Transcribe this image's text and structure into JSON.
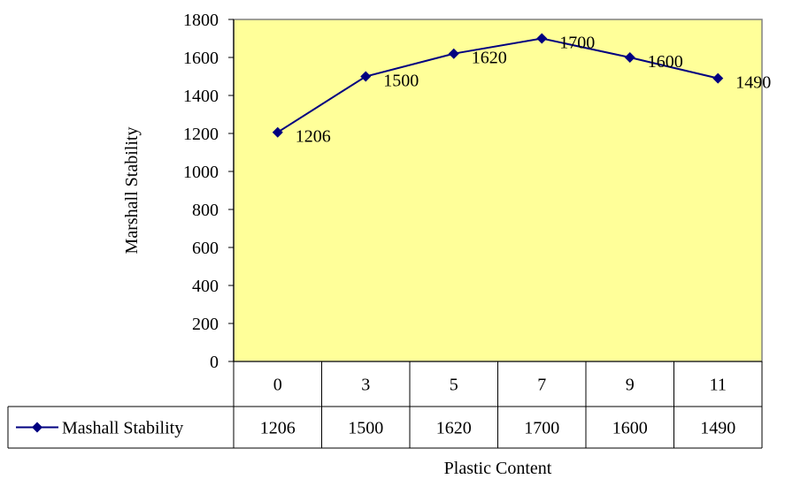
{
  "chart_data": {
    "type": "line",
    "xlabel": "Plastic Content",
    "ylabel": "Marshall Stability",
    "categories": [
      "0",
      "3",
      "5",
      "7",
      "9",
      "11"
    ],
    "series": [
      {
        "name": "Mashall Stability",
        "values": [
          1206,
          1500,
          1620,
          1700,
          1600,
          1490
        ]
      }
    ],
    "data_labels": [
      "1206",
      "1500",
      "1620",
      "1700",
      "1600",
      "1490"
    ],
    "ylim": [
      0,
      1800
    ],
    "yticks": [
      "0",
      "200",
      "400",
      "600",
      "800",
      "1000",
      "1200",
      "1400",
      "1600",
      "1800"
    ],
    "grid": false,
    "legend": "data-table",
    "colors": {
      "plot_bg": "#ffff99",
      "line": "#000080",
      "frame": "#808080",
      "table": "#000000"
    }
  }
}
